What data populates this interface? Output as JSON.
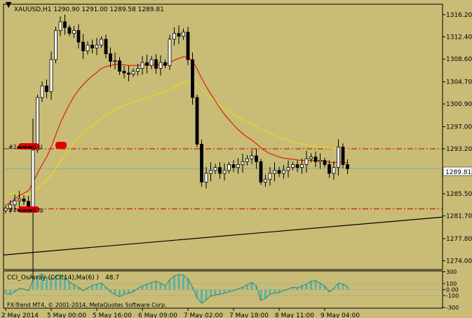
{
  "header": {
    "symbol_info": "XAUUSD,H1  1290.90 1291.00 1289.58 1289.81"
  },
  "labels": {
    "sl": "#2▬▬▬0 sl",
    "tp": "#2▬▬▬0 tp"
  },
  "indicator": {
    "title": "CCI_OsArray (CCI(14),Ma(6) )",
    "value": "48.7"
  },
  "copyright": "FX-Trend MT4, © 2001-2014, MetaQuotes Software Corp.",
  "current_price": "1289.81",
  "colors": {
    "background": "#C8BC77",
    "candle": "#000000",
    "ma_red": "#E00000",
    "ma_yellow": "#F0E000",
    "order_line": "#C00000",
    "histogram": "#5FB0A0"
  },
  "chart_data": {
    "type": "candlestick",
    "title": "XAUUSD,H1",
    "y_ticks": [
      1316.2,
      1312.4,
      1308.6,
      1304.7,
      1300.9,
      1297.0,
      1293.2,
      1285.5,
      1281.7,
      1277.8,
      1274.0
    ],
    "y_tick_labels": [
      "1316.20",
      "1312.40",
      "1308.60",
      "1304.70",
      "1300.90",
      "1297.00",
      "1293.20",
      "1285.50",
      "1281.70",
      "1277.80",
      "1274.00"
    ],
    "ylim": [
      1272.5,
      1318.0
    ],
    "x_tick_labels": [
      "2 May 2014",
      "5 May 00:00",
      "5 May 16:00",
      "6 May 09:00",
      "7 May 02:00",
      "7 May 18:00",
      "8 May 11:00",
      "9 May 04:00"
    ],
    "x_tick_index": [
      0,
      10,
      20,
      30,
      40,
      50,
      60,
      70
    ],
    "candle_count": 76,
    "close": [
      1283.0,
      1283.6,
      1284.3,
      1284.6,
      1284.2,
      1283.1,
      1293.0,
      1302.0,
      1304.0,
      1303.0,
      1308.5,
      1313.5,
      1315.0,
      1314.0,
      1313.0,
      1313.5,
      1311.5,
      1310.0,
      1311.0,
      1310.5,
      1311.0,
      1312.0,
      1309.5,
      1308.2,
      1308.3,
      1306.5,
      1306.2,
      1306.0,
      1306.5,
      1307.0,
      1308.0,
      1307.5,
      1308.5,
      1307.0,
      1308.0,
      1307.5,
      1312.0,
      1313.0,
      1312.5,
      1313.2,
      1308.5,
      1302.0,
      1294.0,
      1287.5,
      1289.0,
      1289.5,
      1290.0,
      1289.0,
      1289.5,
      1290.5,
      1290.0,
      1290.5,
      1291.0,
      1291.5,
      1292.0,
      1291.0,
      1287.5,
      1288.0,
      1289.0,
      1289.5,
      1289.0,
      1289.5,
      1290.0,
      1290.5,
      1290.0,
      1290.5,
      1291.5,
      1291.8,
      1291.0,
      1291.2,
      1290.5,
      1289.0,
      1290.0,
      1293.5,
      1290.5,
      1289.8
    ],
    "ma_red": [
      1283.5,
      1284.0,
      1284.6,
      1285.2,
      1285.6,
      1286.0,
      1287.4,
      1289.0,
      1290.5,
      1291.8,
      1293.5,
      1295.6,
      1297.6,
      1299.3,
      1300.8,
      1302.2,
      1303.3,
      1304.2,
      1305.0,
      1305.7,
      1306.3,
      1307.0,
      1307.3,
      1307.5,
      1307.7,
      1307.7,
      1307.6,
      1307.5,
      1307.5,
      1307.5,
      1307.6,
      1307.6,
      1307.7,
      1307.6,
      1307.6,
      1307.6,
      1308.0,
      1308.4,
      1308.7,
      1309.0,
      1308.9,
      1308.2,
      1306.9,
      1305.3,
      1303.9,
      1302.6,
      1301.4,
      1300.2,
      1299.1,
      1298.2,
      1297.3,
      1296.5,
      1295.8,
      1295.2,
      1294.7,
      1294.1,
      1293.4,
      1292.8,
      1292.4,
      1292.1,
      1291.8,
      1291.6,
      1291.5,
      1291.4,
      1291.3,
      1291.2,
      1291.2,
      1291.2,
      1291.2,
      1291.2,
      1291.1,
      1290.9,
      1290.8,
      1291.0,
      1290.9,
      1290.8
    ],
    "ma_yellow": [
      1285.5,
      1285.5,
      1285.5,
      1285.5,
      1285.5,
      1285.4,
      1285.8,
      1286.4,
      1287.2,
      1287.8,
      1288.7,
      1289.8,
      1291.0,
      1292.1,
      1293.2,
      1294.2,
      1295.0,
      1295.8,
      1296.5,
      1297.1,
      1297.8,
      1298.5,
      1299.0,
      1299.5,
      1300.0,
      1300.3,
      1300.6,
      1300.9,
      1301.2,
      1301.5,
      1301.8,
      1302.0,
      1302.3,
      1302.5,
      1302.7,
      1302.9,
      1303.3,
      1303.8,
      1304.2,
      1304.6,
      1304.8,
      1304.7,
      1304.2,
      1303.4,
      1302.6,
      1301.9,
      1301.3,
      1300.7,
      1300.1,
      1299.6,
      1299.1,
      1298.6,
      1298.2,
      1297.8,
      1297.4,
      1297.0,
      1296.6,
      1296.2,
      1295.8,
      1295.5,
      1295.2,
      1294.9,
      1294.7,
      1294.4,
      1294.2,
      1294.0,
      1293.9,
      1293.7,
      1293.6,
      1293.5,
      1293.4,
      1293.3,
      1293.2,
      1293.2,
      1293.2,
      1293.1
    ],
    "order_lines": {
      "sl": 1293.2,
      "tp": 1282.9
    },
    "current_price": 1289.81,
    "trendline": {
      "from": [
        0,
        1275.0
      ],
      "to": [
        75,
        1281.5
      ]
    },
    "cci_ylim": [
      -300,
      300
    ],
    "cci_ticks": [
      300,
      100,
      0,
      -100,
      -300
    ],
    "cci_tick_labels": [
      "300",
      "100",
      "0.00",
      "-100",
      "-300"
    ],
    "cci_levels": [
      100,
      -100
    ],
    "cci_values": [
      -60,
      -80,
      -40,
      20,
      10,
      -20,
      150,
      220,
      260,
      200,
      170,
      220,
      250,
      210,
      130,
      80,
      40,
      -20,
      30,
      70,
      90,
      110,
      40,
      -40,
      -80,
      -120,
      -80,
      -60,
      -40,
      20,
      60,
      90,
      120,
      140,
      110,
      60,
      160,
      230,
      250,
      240,
      180,
      40,
      -140,
      -230,
      -170,
      -110,
      -90,
      -80,
      -60,
      -40,
      -20,
      10,
      40,
      80,
      120,
      60,
      -180,
      -150,
      -80,
      -60,
      -50,
      -20,
      10,
      40,
      30,
      60,
      90,
      140,
      150,
      110,
      60,
      -40,
      20,
      110,
      90,
      48.7
    ]
  }
}
